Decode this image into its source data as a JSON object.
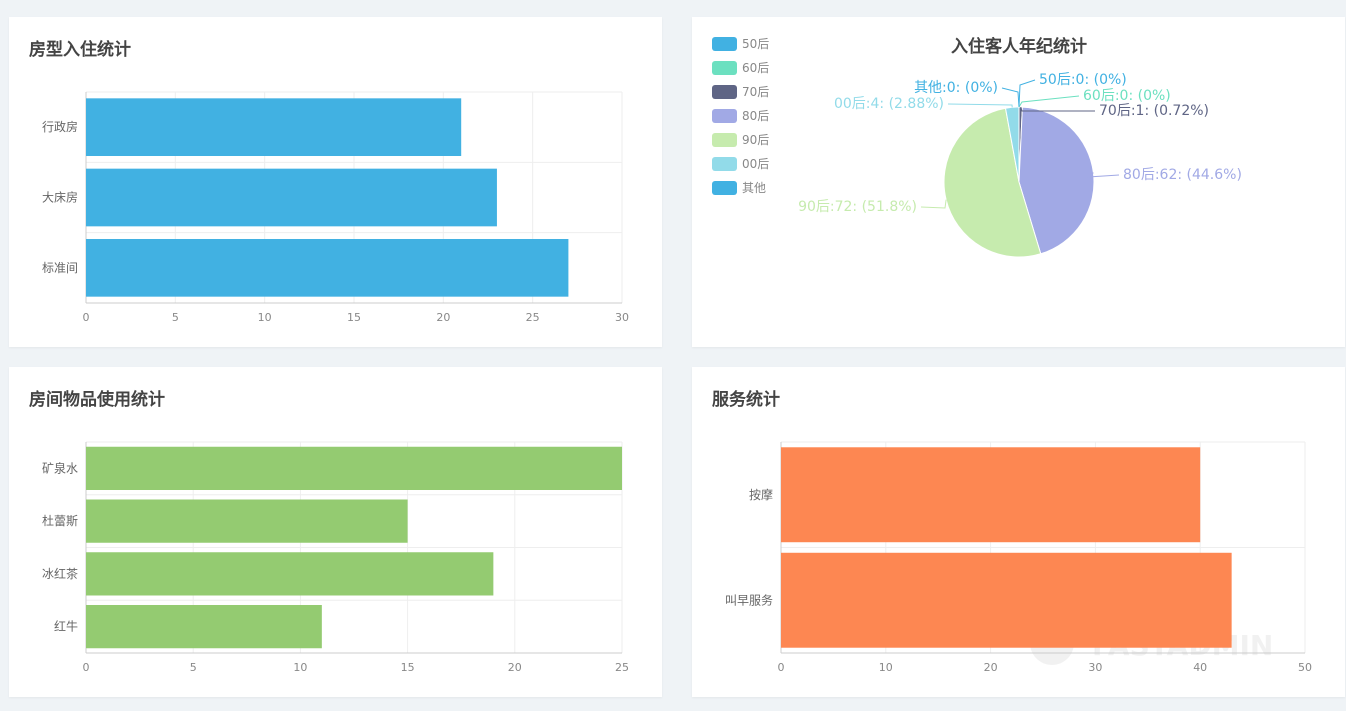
{
  "panels": {
    "room_type": {
      "title": "房型入住统计"
    },
    "age": {
      "title": "入住客人年纪统计"
    },
    "items": {
      "title": "房间物品使用统计"
    },
    "service": {
      "title": "服务统计"
    }
  },
  "watermark": "FASTADMIN",
  "chart_data": [
    {
      "type": "bar",
      "orientation": "horizontal",
      "title": "房型入住统计",
      "categories": [
        "标准间",
        "大床房",
        "行政房"
      ],
      "values": [
        27,
        23,
        21
      ],
      "xlim": [
        0,
        30
      ],
      "xticks": [
        0,
        5,
        10,
        15,
        20,
        25,
        30
      ],
      "color": "#41b1e2",
      "grid": true
    },
    {
      "type": "pie",
      "title": "入住客人年纪统计",
      "legend_position": "top-left",
      "slices": [
        {
          "name": "50后",
          "value": 0,
          "label": "50后:0: (0%)",
          "color": "#41b1e2"
        },
        {
          "name": "60后",
          "value": 0,
          "label": "60后:0: (0%)",
          "color": "#6ce0c0"
        },
        {
          "name": "70后",
          "value": 1,
          "label": "70后:1: (0.72%)",
          "color": "#5f6585"
        },
        {
          "name": "80后",
          "value": 62,
          "label": "80后:62: (44.6%)",
          "color": "#a1a9e5"
        },
        {
          "name": "90后",
          "value": 72,
          "label": "90后:72: (51.8%)",
          "color": "#c6ebae"
        },
        {
          "name": "00后",
          "value": 4,
          "label": "00后:4: (2.88%)",
          "color": "#92dbe9"
        },
        {
          "name": "其他",
          "value": 0,
          "label": "其他:0: (0%)",
          "color": "#41b1e2"
        }
      ]
    },
    {
      "type": "bar",
      "orientation": "horizontal",
      "title": "房间物品使用统计",
      "categories": [
        "红牛",
        "冰红茶",
        "杜蕾斯",
        "矿泉水"
      ],
      "values": [
        11,
        19,
        15,
        25
      ],
      "xlim": [
        0,
        25
      ],
      "xticks": [
        0,
        5,
        10,
        15,
        20,
        25
      ],
      "color": "#94cb71",
      "grid": true
    },
    {
      "type": "bar",
      "orientation": "horizontal",
      "title": "服务统计",
      "categories": [
        "叫早服务",
        "按摩"
      ],
      "values": [
        43,
        40
      ],
      "xlim": [
        0,
        50
      ],
      "xticks": [
        0,
        10,
        20,
        30,
        40,
        50
      ],
      "color": "#fd8752",
      "grid": true
    }
  ]
}
